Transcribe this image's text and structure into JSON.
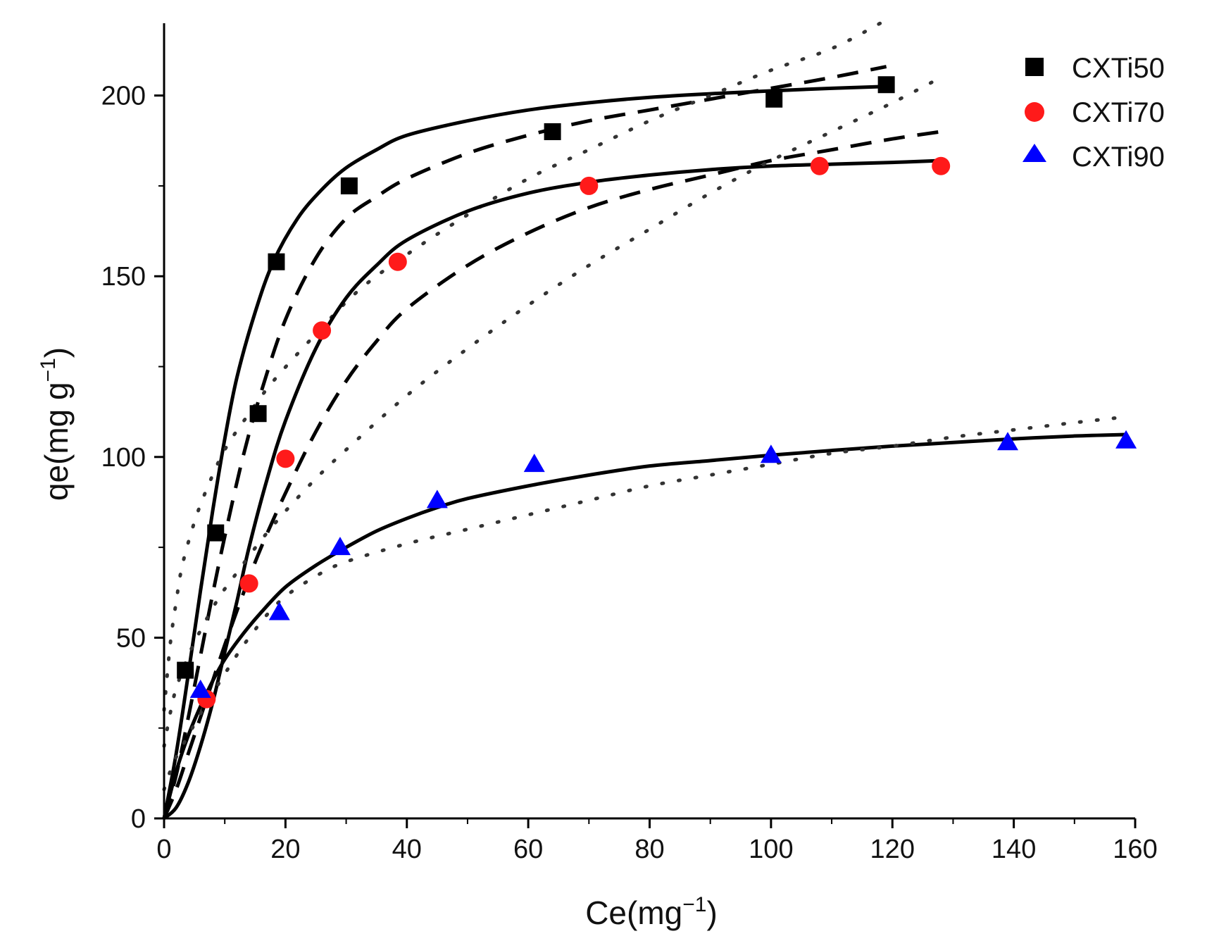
{
  "chart_data": {
    "type": "scatter",
    "title": "",
    "xlabel": "Ce(mg",
    "xlabel_sup": "−1",
    "xlabel_end": ")",
    "ylabel": "qe(mg g",
    "ylabel_sup": "−1",
    "ylabel_end": ")",
    "xlim": [
      0,
      160
    ],
    "ylim": [
      0,
      220
    ],
    "x_ticks": [
      0,
      20,
      40,
      60,
      80,
      100,
      120,
      140,
      160
    ],
    "y_ticks": [
      0,
      50,
      100,
      150,
      200
    ],
    "legend_position": "top-right",
    "series": [
      {
        "name": "CXTi50",
        "marker": "square",
        "color": "#000000",
        "points": [
          [
            3.5,
            41
          ],
          [
            8.5,
            79
          ],
          [
            15.5,
            112
          ],
          [
            18.5,
            154
          ],
          [
            30.5,
            175
          ],
          [
            64,
            190
          ],
          [
            100.5,
            199
          ],
          [
            119,
            203
          ]
        ],
        "fits": [
          {
            "style": "solid",
            "x": [
              0,
              2,
              4,
              6,
              8,
              10,
              12,
              15,
              18,
              22,
              26,
              30,
              35,
              40,
              50,
              60,
              70,
              80,
              90,
              100,
              110,
              119
            ],
            "y": [
              0,
              18,
              40,
              63,
              85,
              105,
              122,
              140,
              154,
              166,
              174,
              180,
              185,
              189,
              193,
              196,
              198,
              199.5,
              200.5,
              201.3,
              202,
              202.5
            ]
          },
          {
            "style": "dashed",
            "x": [
              0,
              2,
              4,
              6,
              8,
              10,
              13,
              16,
              20,
              25,
              30,
              35,
              40,
              50,
              60,
              70,
              80,
              90,
              100,
              110,
              119
            ],
            "y": [
              0,
              12,
              28,
              45,
              62,
              78,
              100,
              118,
              138,
              155,
              166,
              172,
              177,
              184,
              189,
              193,
              196,
              199,
              202,
              205,
              208
            ]
          },
          {
            "style": "dotted",
            "x": [
              0,
              1,
              2,
              3,
              5,
              7,
              10,
              14,
              18,
              25,
              32,
              40,
              50,
              60,
              70,
              80,
              90,
              100,
              110,
              118
            ],
            "y": [
              30,
              48,
              60,
              70,
              82,
              91,
              102,
              112,
              121,
              134,
              146,
              156,
              167,
              177,
              185,
              193,
              200,
              207,
              213,
              220
            ]
          }
        ]
      },
      {
        "name": "CXTi70",
        "marker": "circle",
        "color": "#ff1a1a",
        "points": [
          [
            7,
            33
          ],
          [
            14,
            65
          ],
          [
            20,
            99.5
          ],
          [
            26,
            135
          ],
          [
            38.5,
            154
          ],
          [
            70,
            175
          ],
          [
            108,
            180.5
          ],
          [
            128,
            180.5
          ]
        ],
        "fits": [
          {
            "style": "solid",
            "x": [
              0,
              2,
              4,
              6,
              8,
              10,
              12,
              14,
              17,
              20,
              25,
              30,
              35,
              40,
              50,
              60,
              70,
              80,
              90,
              100,
              110,
              120,
              128
            ],
            "y": [
              0,
              3,
              10,
              20,
              32,
              46,
              60,
              75,
              94,
              110,
              130,
              144,
              153,
              160,
              168,
              173,
              176,
              178,
              179.5,
              180.5,
              181,
              181.5,
              182
            ]
          },
          {
            "style": "dashed",
            "x": [
              0,
              2,
              4,
              6,
              8,
              10,
              13,
              16,
              20,
              25,
              30,
              35,
              40,
              50,
              60,
              70,
              80,
              90,
              100,
              110,
              120,
              128
            ],
            "y": [
              0,
              8,
              18,
              28,
              38,
              48,
              62,
              75,
              90,
              107,
              121,
              132,
              141,
              153,
              162,
              169,
              174,
              178,
              182,
              185,
              188,
              190
            ]
          },
          {
            "style": "dotted",
            "x": [
              0,
              1,
              2,
              4,
              6,
              9,
              12,
              16,
              20,
              25,
              30,
              40,
              50,
              60,
              70,
              80,
              90,
              100,
              110,
              120,
              128
            ],
            "y": [
              20,
              29,
              36,
              45,
              52,
              61,
              68,
              77,
              85,
              94,
              102,
              117,
              130,
              142,
              153,
              163,
              173,
              182,
              190,
              198,
              205
            ]
          }
        ]
      },
      {
        "name": "CXTi90",
        "marker": "triangle",
        "color": "#0000ff",
        "points": [
          [
            6,
            35.5
          ],
          [
            19,
            57
          ],
          [
            29,
            75
          ],
          [
            45,
            88
          ],
          [
            61,
            98
          ],
          [
            100,
            100.5
          ],
          [
            139,
            104
          ],
          [
            158.5,
            104.5
          ]
        ],
        "fits": [
          {
            "style": "solid",
            "x": [
              0,
              2,
              4,
              6,
              8,
              10,
              13,
              16,
              20,
              25,
              30,
              35,
              40,
              45,
              50,
              60,
              70,
              80,
              90,
              100,
              110,
              120,
              130,
              140,
              150,
              158.5
            ],
            "y": [
              0,
              13,
              23,
              31,
              38,
              44,
              51,
              57,
              64,
              70,
              75,
              79.5,
              83,
              86,
              88.5,
              92,
              95,
              97.5,
              99,
              100.5,
              101.8,
              103,
              104,
              105,
              105.8,
              106.2
            ]
          },
          {
            "style": "dotted",
            "x": [
              0,
              1,
              2,
              4,
              6,
              10,
              14,
              19,
              25,
              30,
              40,
              50,
              60,
              70,
              80,
              90,
              100,
              110,
              120,
              130,
              140,
              150,
              158
            ],
            "y": [
              8,
              13,
              17,
              23,
              29,
              40,
              50,
              60,
              67,
              71,
              76,
              80,
              84,
              88,
              92,
              95,
              98,
              101,
              103,
              105.5,
              107.5,
              109.5,
              111
            ]
          }
        ]
      }
    ]
  }
}
